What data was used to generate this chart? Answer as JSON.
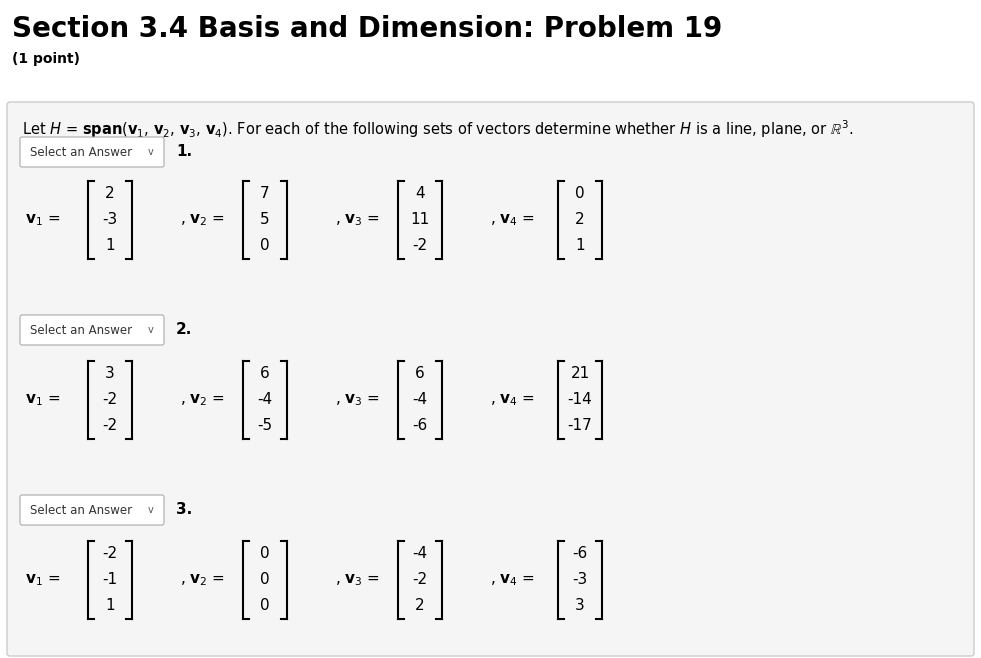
{
  "title": "Section 3.4 Basis and Dimension: Problem 19",
  "subtitle": "(1 point)",
  "problems": [
    {
      "number": "1.",
      "v1": [
        "2",
        "-3",
        "1"
      ],
      "v2": [
        "7",
        "5",
        "0"
      ],
      "v3": [
        "4",
        "11",
        "-2"
      ],
      "v4": [
        "0",
        "2",
        "1"
      ]
    },
    {
      "number": "2.",
      "v1": [
        "3",
        "-2",
        "-2"
      ],
      "v2": [
        "6",
        "-4",
        "-5"
      ],
      "v3": [
        "6",
        "-4",
        "-6"
      ],
      "v4": [
        "21",
        "-14",
        "-17"
      ]
    },
    {
      "number": "3.",
      "v1": [
        "-2",
        "-1",
        "1"
      ],
      "v2": [
        "0",
        "0",
        "0"
      ],
      "v3": [
        "-4",
        "-2",
        "2"
      ],
      "v4": [
        "-6",
        "-3",
        "3"
      ]
    }
  ],
  "bg_white": "#ffffff",
  "bg_gray": "#f0f0f0",
  "bg_panel": "#f5f5f5",
  "border_color": "#cccccc",
  "text_color": "#000000",
  "title_fontsize": 20,
  "subtitle_fontsize": 10,
  "body_fontsize": 11
}
